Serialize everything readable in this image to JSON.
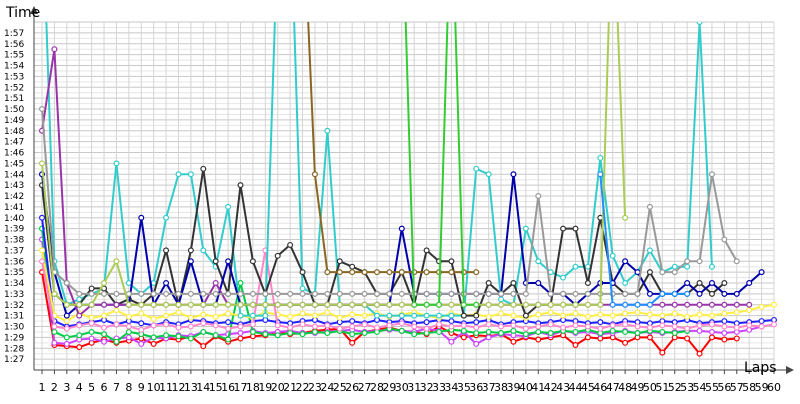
{
  "chart_data": {
    "type": "line",
    "title": "",
    "ylabel": "Time",
    "xlabel": "Laps",
    "x_ticks": [
      "1",
      "2",
      "3",
      "4",
      "5",
      "6",
      "7",
      "8",
      "9",
      "10",
      "11",
      "12",
      "13",
      "14",
      "15",
      "16",
      "17",
      "18",
      "19",
      "20",
      "21",
      "22",
      "23",
      "24",
      "25",
      "26",
      "27",
      "28",
      "29",
      "30",
      "31",
      "32",
      "33",
      "34",
      "35",
      "36",
      "37",
      "38",
      "39",
      "40",
      "41",
      "42",
      "43",
      "44",
      "45",
      "46",
      "47",
      "48",
      "49",
      "50",
      "51",
      "52",
      "53",
      "54",
      "55",
      "56",
      "57",
      "58",
      "59",
      "60"
    ],
    "y_ticks": [
      "1:27",
      "1:28",
      "1:29",
      "1:30",
      "1:31",
      "1:32",
      "1:33",
      "1:34",
      "1:35",
      "1:36",
      "1:37",
      "1:38",
      "1:39",
      "1:40",
      "1:41",
      "1:42",
      "1:43",
      "1:44",
      "1:45",
      "1:46",
      "1:47",
      "1:48",
      "1:49",
      "1:50",
      "1:51",
      "1:52",
      "1:53",
      "1:54",
      "1:55",
      "1:56",
      "1:57"
    ],
    "ylim_seconds": [
      86,
      118
    ],
    "xlim": [
      1,
      60
    ],
    "grid": true,
    "legend": "none",
    "series": [
      {
        "color": "#ff0000",
        "values": [
          95,
          88.3,
          88.2,
          88.1,
          88.5,
          88.8,
          88.5,
          88.7,
          88.9,
          88.4,
          88.9,
          88.8,
          89.1,
          88.2,
          89.1,
          88.6,
          88.9,
          89.1,
          89.2,
          89.5,
          89.3,
          89.4,
          89.6,
          89.7,
          89.8,
          88.5,
          89.5,
          89.7,
          89.9,
          89.6,
          89.5,
          89.3,
          90.0,
          89.4,
          89.0,
          89.2,
          89.1,
          89.3,
          88.6,
          89.0,
          88.8,
          89.0,
          89.2,
          88.3,
          89.0,
          88.9,
          89.0,
          88.5,
          89.0,
          89.0,
          87.6,
          89.0,
          88.9,
          87.5,
          89.0,
          88.8,
          88.9,
          null,
          null,
          null
        ]
      },
      {
        "color": "#cc44ff",
        "values": [
          98,
          88.5,
          88.4,
          88.8,
          88.9,
          88.6,
          88.9,
          89.0,
          88.4,
          89.0,
          88.9,
          89.2,
          89.1,
          89.5,
          89.2,
          89.3,
          89.4,
          89.6,
          89.4,
          89.5,
          89.6,
          89.4,
          89.4,
          89.5,
          89.6,
          89.7,
          89.5,
          89.6,
          89.7,
          89.6,
          89.5,
          89.8,
          89.6,
          88.6,
          89.5,
          88.4,
          89.0,
          89.3,
          89.2,
          89.1,
          89.5,
          89.2,
          89.6,
          89.4,
          89.5,
          89.3,
          89.4,
          89.6,
          89.4,
          89.5,
          89.4,
          89.5,
          89.6,
          89.6,
          89.5,
          89.4,
          89.5,
          89.7,
          90.0,
          null
        ]
      },
      {
        "color": "#00cc44",
        "values": [
          99,
          89.5,
          89.0,
          89.2,
          89.5,
          89.3,
          88.6,
          89.5,
          89.3,
          89.0,
          89.2,
          89.1,
          88.9,
          89.5,
          89.2,
          88.8,
          94,
          89.5,
          89.3,
          89.2,
          89.4,
          89.3,
          89.5,
          89.4,
          89.6,
          89.3,
          89.4,
          89.5,
          89.8,
          89.6,
          89.3,
          89.4,
          89.5,
          89.7,
          89.6,
          89.4,
          89.5,
          89.4,
          89.6,
          89.3,
          89.5,
          89.4,
          89.6,
          89.5,
          89.7,
          89.4,
          89.6,
          89.5,
          89.4,
          89.6,
          89.5,
          89.4,
          89.6,
          null,
          null,
          null,
          null,
          null,
          null,
          null
        ]
      },
      {
        "color": "#2020ff",
        "values": [
          100,
          90.5,
          90.0,
          90.2,
          90.4,
          90.6,
          90.2,
          90.5,
          90.3,
          90.1,
          90.4,
          90.2,
          90.6,
          90.5,
          90.3,
          90.4,
          90.2,
          90.5,
          90.6,
          90.4,
          90.3,
          90.5,
          90.6,
          90.2,
          90.4,
          90.5,
          90.3,
          90.6,
          90.4,
          90.5,
          90.3,
          90.4,
          90.6,
          90.5,
          90.3,
          90.4,
          90.6,
          90.2,
          90.4,
          90.5,
          90.3,
          90.4,
          90.6,
          90.5,
          90.3,
          90.4,
          90.2,
          90.5,
          90.4,
          90.3,
          90.5,
          90.4,
          90.6,
          90.3,
          90.4,
          90.5,
          90.3,
          90.4,
          90.5,
          90.6
        ]
      },
      {
        "color": "#ffee44",
        "values": [
          97,
          91.0,
          90.5,
          91.2,
          90.8,
          91.0,
          91.5,
          90.9,
          91.2,
          90.7,
          91.0,
          91.3,
          90.8,
          91.1,
          90.9,
          91.2,
          91.0,
          90.8,
          91.3,
          91.1,
          90.9,
          91.2,
          91.0,
          91.3,
          90.8,
          91.1,
          91.0,
          91.2,
          90.9,
          91.1,
          91.3,
          91.0,
          90.8,
          91.2,
          91.0,
          91.1,
          90.9,
          91.2,
          91.0,
          90.8,
          91.1,
          91.3,
          91.0,
          91.2,
          90.9,
          91.1,
          91.0,
          91.2,
          91.3,
          91.1,
          91.0,
          91.2,
          90.9,
          91.1,
          91.0,
          91.2,
          91.3,
          91.5,
          91.8,
          92.0
        ]
      },
      {
        "color": "#ff88cc",
        "values": [
          96,
          90.0,
          89.8,
          90.1,
          90.3,
          89.9,
          90.2,
          90.0,
          89.7,
          90.1,
          90.2,
          89.9,
          90.0,
          90.3,
          90.1,
          89.8,
          90.0,
          90.2,
          97,
          90.1,
          89.9,
          90.2,
          90.0,
          90.1,
          89.8,
          90.0,
          90.2,
          89.9,
          90.1,
          90.3,
          90.0,
          89.8,
          90.2,
          90.0,
          90.1,
          89.9,
          90.2,
          90.0,
          90.1,
          89.8,
          90.0,
          90.2,
          89.9,
          90.1,
          90.0,
          89.8,
          90.1,
          90.2,
          90.0,
          89.9,
          90.1,
          90.0,
          89.8,
          90.1,
          90.2,
          90.0,
          89.9,
          90.1,
          90.0,
          90.2
        ]
      },
      {
        "color": "#33cccc",
        "values": [
          130,
          96,
          92,
          92.5,
          93,
          93.5,
          105,
          94,
          93,
          94,
          100,
          104,
          104,
          97,
          95.5,
          101,
          91,
          91,
          91,
          126,
          130,
          93.5,
          93,
          108,
          92,
          92,
          92,
          91,
          91,
          91,
          91,
          91,
          91,
          91,
          91,
          104.5,
          104,
          92.5,
          92,
          99,
          96,
          95,
          94.5,
          95.5,
          95.5,
          105.5,
          96.5,
          94,
          95,
          97,
          95,
          95.5,
          95.5,
          118,
          95.5,
          null,
          null,
          null,
          null,
          null
        ]
      },
      {
        "color": "#333333",
        "values": [
          103,
          93,
          92,
          92,
          93.5,
          93.5,
          92,
          92.5,
          92,
          93,
          97,
          92,
          97,
          104.5,
          96,
          93,
          103,
          96,
          93,
          96.5,
          97.5,
          95,
          92,
          92,
          96,
          95.5,
          95,
          93,
          93,
          95,
          92,
          97,
          96,
          96,
          91,
          91,
          94,
          93,
          94,
          91,
          92,
          92,
          99,
          99,
          94,
          100,
          94,
          93,
          93,
          95,
          93,
          93,
          93,
          94,
          93,
          94,
          null,
          null,
          null,
          null
        ]
      },
      {
        "color": "#0000aa",
        "values": [
          104,
          95,
          91,
          92,
          92,
          92,
          92,
          92,
          100,
          92,
          94,
          92,
          96,
          92,
          92,
          96,
          92,
          92,
          92,
          92,
          92,
          92,
          92,
          92,
          92,
          92,
          92,
          92,
          92,
          99,
          93,
          93,
          93,
          93,
          93,
          93,
          93,
          93,
          104,
          94,
          94,
          93,
          93,
          92,
          93,
          94,
          94,
          96,
          95,
          93,
          93,
          93,
          94,
          93,
          94,
          93,
          93,
          94,
          95,
          null
        ]
      },
      {
        "color": "#9933aa",
        "values": [
          108,
          115.5,
          94,
          91,
          92,
          92,
          92,
          92,
          92,
          92,
          92,
          92,
          92,
          92,
          94,
          92,
          92,
          92,
          92,
          92,
          92,
          92,
          92,
          92,
          92,
          92,
          92,
          92,
          92,
          92,
          92,
          92,
          92,
          92,
          92,
          92,
          92,
          92,
          92,
          92,
          92,
          92,
          92,
          92,
          92,
          92,
          92,
          92,
          92,
          92,
          92,
          92,
          92,
          92,
          92,
          92,
          92,
          92,
          null,
          null
        ]
      },
      {
        "color": "#999999",
        "values": [
          110,
          95,
          94,
          93,
          93,
          93,
          93,
          93,
          93,
          93,
          93,
          93,
          93,
          93,
          93,
          93,
          93,
          93,
          93,
          93,
          93,
          93,
          93,
          93,
          93,
          93,
          93,
          93,
          93,
          93,
          93,
          93,
          93,
          93,
          93,
          93,
          93,
          93,
          93,
          93,
          102,
          93,
          93,
          93,
          93,
          93,
          93,
          93,
          93,
          101,
          95,
          95,
          96,
          96,
          104,
          98,
          96,
          null,
          null,
          null
        ]
      },
      {
        "color": "#aacc55",
        "values": [
          105,
          93,
          92,
          92,
          92,
          94,
          96,
          92,
          92,
          92,
          92,
          92,
          92,
          92,
          92,
          92,
          92,
          92,
          92,
          92,
          92,
          92,
          92,
          92,
          92,
          92,
          92,
          92,
          92,
          92,
          92,
          92,
          92,
          92,
          92,
          92,
          92,
          92,
          92,
          92,
          92,
          92,
          92,
          92,
          92,
          92,
          130,
          100,
          null,
          null,
          null,
          null,
          null,
          null,
          null,
          null,
          null,
          null,
          null,
          null
        ]
      },
      {
        "color": "#1e90ff",
        "values": [
          null,
          null,
          null,
          null,
          null,
          null,
          null,
          null,
          null,
          null,
          null,
          null,
          null,
          null,
          null,
          null,
          null,
          null,
          null,
          null,
          null,
          null,
          null,
          null,
          null,
          null,
          null,
          null,
          null,
          null,
          null,
          null,
          null,
          null,
          null,
          null,
          null,
          null,
          null,
          null,
          null,
          null,
          null,
          null,
          null,
          104,
          92,
          92,
          92,
          92,
          93,
          93,
          93,
          null,
          null,
          null,
          null,
          null,
          null,
          null
        ]
      },
      {
        "color": "#886622",
        "values": [
          null,
          null,
          null,
          null,
          null,
          null,
          null,
          null,
          null,
          null,
          null,
          null,
          null,
          null,
          null,
          null,
          null,
          null,
          null,
          null,
          130,
          130,
          104,
          95,
          95,
          95,
          95,
          95,
          95,
          95,
          95,
          95,
          95,
          95,
          95,
          95,
          null,
          null,
          null,
          null,
          null,
          null,
          null,
          null,
          null,
          null,
          null,
          null,
          null,
          null,
          null,
          null,
          null,
          null,
          null,
          null,
          null,
          null,
          null,
          null
        ]
      },
      {
        "color": "#33cc33",
        "values": [
          null,
          null,
          null,
          null,
          null,
          null,
          null,
          null,
          null,
          null,
          null,
          null,
          null,
          null,
          null,
          null,
          null,
          null,
          null,
          null,
          null,
          null,
          null,
          null,
          null,
          null,
          null,
          null,
          null,
          130,
          92,
          92,
          92,
          130,
          92,
          92,
          null,
          null,
          null,
          null,
          null,
          null,
          null,
          null,
          null,
          null,
          null,
          null,
          null,
          null,
          null,
          null,
          null,
          null,
          null,
          null,
          null,
          null,
          null,
          null
        ]
      }
    ]
  }
}
